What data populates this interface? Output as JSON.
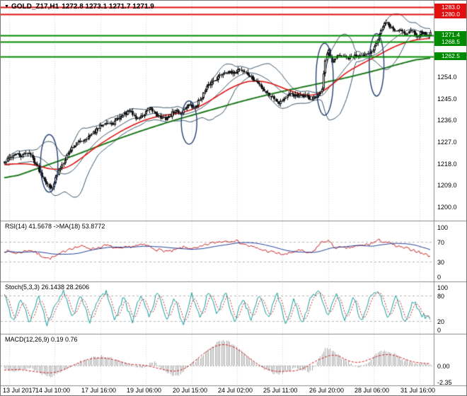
{
  "title_bar": {
    "symbol_period": "GOLD_Z17,H1",
    "ohlc": "1272.8 1273.1 1271.7 1271.9"
  },
  "colors": {
    "background": "#ffffff",
    "grid": "#d6d6d6",
    "text": "#000000",
    "resistance": "#e01010",
    "support": "#008a00",
    "candle": "#111111",
    "candle_bull_fill": "#ffffff",
    "bollinger": "#3a5568",
    "ma_fast": "#e01515",
    "ma_slow": "#1d7a1d",
    "rsi_line": "#c81e1e",
    "rsi_ma": "#1e3c96",
    "stoch_main": "#169c9c",
    "stoch_signal": "#c03030",
    "macd_hist": "#a8a8a8",
    "macd_signal": "#d01818",
    "panel_border": "#8c8c8c",
    "level_dash": "#b8b8b8",
    "ellipse": "#26406e"
  },
  "chart_data": [
    {
      "id": "price",
      "type": "candlestick",
      "title": "GOLD_Z17,H1",
      "ohlc_readout": {
        "open": 1272.8,
        "high": 1273.1,
        "low": 1271.7,
        "close": 1271.9
      },
      "y_axis": {
        "min": 1194.2,
        "max": 1285.4,
        "ticks": [
          {
            "label": "1254.0",
            "value": 1254
          },
          {
            "label": "1245.0",
            "value": 1245
          },
          {
            "label": "1236.0",
            "value": 1236
          },
          {
            "label": "1227.0",
            "value": 1227
          },
          {
            "label": "1218.0",
            "value": 1218
          },
          {
            "label": "1209.0",
            "value": 1209
          },
          {
            "label": "1200.0",
            "value": 1200
          }
        ]
      },
      "levels": [
        {
          "value": 1283.0,
          "label": "1283.0",
          "kind": "resistance"
        },
        {
          "value": 1280.0,
          "label": "1280.0",
          "kind": "resistance"
        },
        {
          "value": 1271.4,
          "label": "1271.4",
          "kind": "support"
        },
        {
          "value": 1268.5,
          "label": "1268.5",
          "kind": "support"
        },
        {
          "value": 1262.5,
          "label": "1262.5",
          "kind": "support"
        }
      ],
      "candle_count": 260,
      "price_path": [
        [
          0,
          1218
        ],
        [
          0.012,
          1220.5
        ],
        [
          0.025,
          1222
        ],
        [
          0.04,
          1221
        ],
        [
          0.055,
          1223
        ],
        [
          0.07,
          1219
        ],
        [
          0.085,
          1214
        ],
        [
          0.1,
          1210
        ],
        [
          0.108,
          1207.5
        ],
        [
          0.118,
          1211
        ],
        [
          0.13,
          1216
        ],
        [
          0.145,
          1221
        ],
        [
          0.16,
          1225
        ],
        [
          0.175,
          1227
        ],
        [
          0.19,
          1228.5
        ],
        [
          0.205,
          1230
        ],
        [
          0.22,
          1232.5
        ],
        [
          0.235,
          1235.5
        ],
        [
          0.25,
          1234
        ],
        [
          0.265,
          1236.5
        ],
        [
          0.28,
          1238.5
        ],
        [
          0.295,
          1239.5
        ],
        [
          0.31,
          1236.5
        ],
        [
          0.325,
          1238
        ],
        [
          0.34,
          1240.5
        ],
        [
          0.355,
          1239
        ],
        [
          0.37,
          1236.5
        ],
        [
          0.385,
          1237
        ],
        [
          0.4,
          1240
        ],
        [
          0.415,
          1239
        ],
        [
          0.43,
          1242.5
        ],
        [
          0.445,
          1241
        ],
        [
          0.46,
          1245
        ],
        [
          0.475,
          1249.5
        ],
        [
          0.49,
          1252.5
        ],
        [
          0.505,
          1254.5
        ],
        [
          0.52,
          1256.5
        ],
        [
          0.535,
          1255
        ],
        [
          0.55,
          1257.5
        ],
        [
          0.565,
          1256
        ],
        [
          0.58,
          1253.5
        ],
        [
          0.6,
          1250.5
        ],
        [
          0.615,
          1247.5
        ],
        [
          0.63,
          1245.5
        ],
        [
          0.645,
          1243.5
        ],
        [
          0.66,
          1245.5
        ],
        [
          0.675,
          1247
        ],
        [
          0.69,
          1245.5
        ],
        [
          0.705,
          1246.5
        ],
        [
          0.72,
          1244.5
        ],
        [
          0.735,
          1245.5
        ],
        [
          0.744,
          1248
        ],
        [
          0.752,
          1261
        ],
        [
          0.76,
          1265.5
        ],
        [
          0.768,
          1259
        ],
        [
          0.778,
          1262
        ],
        [
          0.79,
          1263
        ],
        [
          0.805,
          1261.5
        ],
        [
          0.82,
          1262.5
        ],
        [
          0.835,
          1263.5
        ],
        [
          0.85,
          1262.5
        ],
        [
          0.862,
          1264.5
        ],
        [
          0.872,
          1268.5
        ],
        [
          0.882,
          1273
        ],
        [
          0.893,
          1276.5
        ],
        [
          0.905,
          1275
        ],
        [
          0.917,
          1273
        ],
        [
          0.93,
          1274
        ],
        [
          0.942,
          1272
        ],
        [
          0.955,
          1273.5
        ],
        [
          0.968,
          1271.5
        ],
        [
          0.98,
          1272.5
        ],
        [
          0.99,
          1271.5
        ],
        [
          1,
          1272
        ]
      ],
      "ma_fast_red": [
        [
          0,
          1217
        ],
        [
          0.05,
          1218.5
        ],
        [
          0.1,
          1216
        ],
        [
          0.13,
          1214.5
        ],
        [
          0.16,
          1217
        ],
        [
          0.2,
          1223
        ],
        [
          0.25,
          1229
        ],
        [
          0.3,
          1234
        ],
        [
          0.35,
          1237.5
        ],
        [
          0.4,
          1238.5
        ],
        [
          0.45,
          1240.5
        ],
        [
          0.5,
          1246
        ],
        [
          0.55,
          1251.5
        ],
        [
          0.6,
          1253
        ],
        [
          0.64,
          1250.5
        ],
        [
          0.68,
          1247.5
        ],
        [
          0.72,
          1245.5
        ],
        [
          0.75,
          1247
        ],
        [
          0.78,
          1253
        ],
        [
          0.82,
          1258
        ],
        [
          0.86,
          1261
        ],
        [
          0.9,
          1265.5
        ],
        [
          0.95,
          1269
        ],
        [
          1,
          1270.5
        ]
      ],
      "ma_slow_green": [
        [
          0,
          1211
        ],
        [
          0.08,
          1216
        ],
        [
          0.16,
          1221
        ],
        [
          0.24,
          1226.5
        ],
        [
          0.32,
          1231.5
        ],
        [
          0.4,
          1236
        ],
        [
          0.48,
          1240
        ],
        [
          0.56,
          1244
        ],
        [
          0.64,
          1247.5
        ],
        [
          0.72,
          1250.5
        ],
        [
          0.8,
          1253.5
        ],
        [
          0.88,
          1257
        ],
        [
          0.94,
          1260
        ],
        [
          1,
          1262.5
        ]
      ],
      "bollinger": {
        "window": 20,
        "deviation": 2
      },
      "ellipse_annotations": [
        {
          "t": 0.112,
          "price": 1218,
          "rt": 0.02,
          "rprice": 12
        },
        {
          "t": 0.435,
          "price": 1235,
          "rt": 0.018,
          "rprice": 9
        },
        {
          "t": 0.748,
          "price": 1253,
          "rt": 0.02,
          "rprice": 15
        },
        {
          "t": 0.868,
          "price": 1259,
          "rt": 0.017,
          "rprice": 13
        }
      ]
    },
    {
      "id": "rsi",
      "type": "line",
      "label": "RSI(14) 41.5678 ->MA(18) 53.8772",
      "readout": {
        "rsi": 41.5678,
        "ma": 53.8772
      },
      "range": [
        0,
        100
      ],
      "level_lines": [
        70,
        30
      ],
      "y_ticks": [
        {
          "label": "100",
          "value": 100
        },
        {
          "label": "70",
          "value": 70
        },
        {
          "label": "30",
          "value": 30
        },
        {
          "label": "0",
          "value": 0
        }
      ],
      "path": [
        [
          0,
          52
        ],
        [
          0.03,
          47
        ],
        [
          0.06,
          54
        ],
        [
          0.085,
          43
        ],
        [
          0.105,
          36
        ],
        [
          0.125,
          42
        ],
        [
          0.15,
          56
        ],
        [
          0.18,
          61
        ],
        [
          0.21,
          56
        ],
        [
          0.24,
          63
        ],
        [
          0.27,
          55
        ],
        [
          0.3,
          61
        ],
        [
          0.33,
          64
        ],
        [
          0.36,
          54
        ],
        [
          0.39,
          50
        ],
        [
          0.42,
          59
        ],
        [
          0.45,
          56
        ],
        [
          0.48,
          66
        ],
        [
          0.51,
          71
        ],
        [
          0.54,
          73
        ],
        [
          0.57,
          63
        ],
        [
          0.6,
          55
        ],
        [
          0.63,
          49
        ],
        [
          0.66,
          44
        ],
        [
          0.69,
          53
        ],
        [
          0.72,
          46
        ],
        [
          0.745,
          69
        ],
        [
          0.76,
          73
        ],
        [
          0.775,
          59
        ],
        [
          0.8,
          57
        ],
        [
          0.83,
          61
        ],
        [
          0.86,
          66
        ],
        [
          0.88,
          73
        ],
        [
          0.9,
          69
        ],
        [
          0.92,
          61
        ],
        [
          0.94,
          57
        ],
        [
          0.96,
          54
        ],
        [
          0.98,
          47
        ],
        [
          1,
          41.6
        ]
      ]
    },
    {
      "id": "stoch",
      "type": "line",
      "label": "Stoch(5,3,3) 26.1438 28.2606",
      "readout": {
        "main": 26.1438,
        "signal": 28.2606
      },
      "range": [
        0,
        100
      ],
      "level_lines": [
        80,
        20
      ],
      "y_ticks": [
        {
          "label": "100",
          "value": 100
        },
        {
          "label": "80",
          "value": 80
        },
        {
          "label": "20",
          "value": 20
        },
        {
          "label": "0",
          "value": 0
        }
      ],
      "path": [
        [
          0,
          85
        ],
        [
          0.02,
          20
        ],
        [
          0.04,
          75
        ],
        [
          0.06,
          15
        ],
        [
          0.08,
          80
        ],
        [
          0.1,
          10
        ],
        [
          0.12,
          60
        ],
        [
          0.14,
          90
        ],
        [
          0.16,
          25
        ],
        [
          0.18,
          85
        ],
        [
          0.2,
          15
        ],
        [
          0.22,
          70
        ],
        [
          0.24,
          90
        ],
        [
          0.26,
          20
        ],
        [
          0.28,
          80
        ],
        [
          0.3,
          15
        ],
        [
          0.32,
          85
        ],
        [
          0.34,
          30
        ],
        [
          0.36,
          90
        ],
        [
          0.38,
          20
        ],
        [
          0.4,
          75
        ],
        [
          0.42,
          10
        ],
        [
          0.44,
          85
        ],
        [
          0.46,
          25
        ],
        [
          0.48,
          90
        ],
        [
          0.5,
          35
        ],
        [
          0.52,
          85
        ],
        [
          0.54,
          15
        ],
        [
          0.56,
          75
        ],
        [
          0.58,
          20
        ],
        [
          0.6,
          85
        ],
        [
          0.62,
          25
        ],
        [
          0.64,
          90
        ],
        [
          0.66,
          15
        ],
        [
          0.68,
          70
        ],
        [
          0.7,
          10
        ],
        [
          0.72,
          80
        ],
        [
          0.74,
          90
        ],
        [
          0.76,
          30
        ],
        [
          0.78,
          85
        ],
        [
          0.8,
          20
        ],
        [
          0.82,
          75
        ],
        [
          0.84,
          15
        ],
        [
          0.86,
          85
        ],
        [
          0.88,
          90
        ],
        [
          0.9,
          25
        ],
        [
          0.92,
          80
        ],
        [
          0.94,
          15
        ],
        [
          0.96,
          70
        ],
        [
          0.98,
          35
        ],
        [
          1,
          26.1
        ]
      ]
    },
    {
      "id": "macd",
      "type": "bar",
      "label": "MACD(12,26,9) 0.19 0.76",
      "readout": {
        "macd": 0.19,
        "signal": 0.76
      },
      "y_ticks": [
        {
          "label": "0.00",
          "value": 0
        },
        {
          "label": "-2.35",
          "value": -2.35
        }
      ],
      "path": [
        [
          0,
          -0.4
        ],
        [
          0.03,
          -0.8
        ],
        [
          0.06,
          -0.3
        ],
        [
          0.09,
          -1.2
        ],
        [
          0.11,
          -1.5
        ],
        [
          0.14,
          -0.6
        ],
        [
          0.17,
          0.4
        ],
        [
          0.2,
          1
        ],
        [
          0.23,
          1.4
        ],
        [
          0.26,
          0.8
        ],
        [
          0.29,
          0.2
        ],
        [
          0.32,
          -0.3
        ],
        [
          0.35,
          0.5
        ],
        [
          0.38,
          -0.9
        ],
        [
          0.4,
          -1.6
        ],
        [
          0.42,
          -0.8
        ],
        [
          0.44,
          0.3
        ],
        [
          0.46,
          1.2
        ],
        [
          0.48,
          2.4
        ],
        [
          0.5,
          3.2
        ],
        [
          0.52,
          3.6
        ],
        [
          0.54,
          2.8
        ],
        [
          0.56,
          1.8
        ],
        [
          0.58,
          0.8
        ],
        [
          0.6,
          -0.2
        ],
        [
          0.62,
          -0.8
        ],
        [
          0.64,
          -1.2
        ],
        [
          0.66,
          -0.9
        ],
        [
          0.68,
          -0.4
        ],
        [
          0.7,
          -0.6
        ],
        [
          0.72,
          -0.9
        ],
        [
          0.74,
          1.2
        ],
        [
          0.755,
          2.6
        ],
        [
          0.77,
          2
        ],
        [
          0.79,
          1.2
        ],
        [
          0.81,
          0.4
        ],
        [
          0.83,
          -0.2
        ],
        [
          0.85,
          0.3
        ],
        [
          0.87,
          1.4
        ],
        [
          0.89,
          2.2
        ],
        [
          0.91,
          1.8
        ],
        [
          0.93,
          1
        ],
        [
          0.95,
          0.5
        ],
        [
          0.97,
          0.3
        ],
        [
          1,
          0.19
        ]
      ]
    }
  ],
  "time_axis": {
    "labels": [
      "13 Jul 2017",
      "14 Jul 10:00",
      "17 Jul 16:00",
      "19 Jul 06:00",
      "20 Jul 15:00",
      "24 Jul 02:00",
      "25 Jul 11:00",
      "26 Jul 20:00",
      "28 Jul 06:00",
      "31 Jul 16:00"
    ]
  }
}
